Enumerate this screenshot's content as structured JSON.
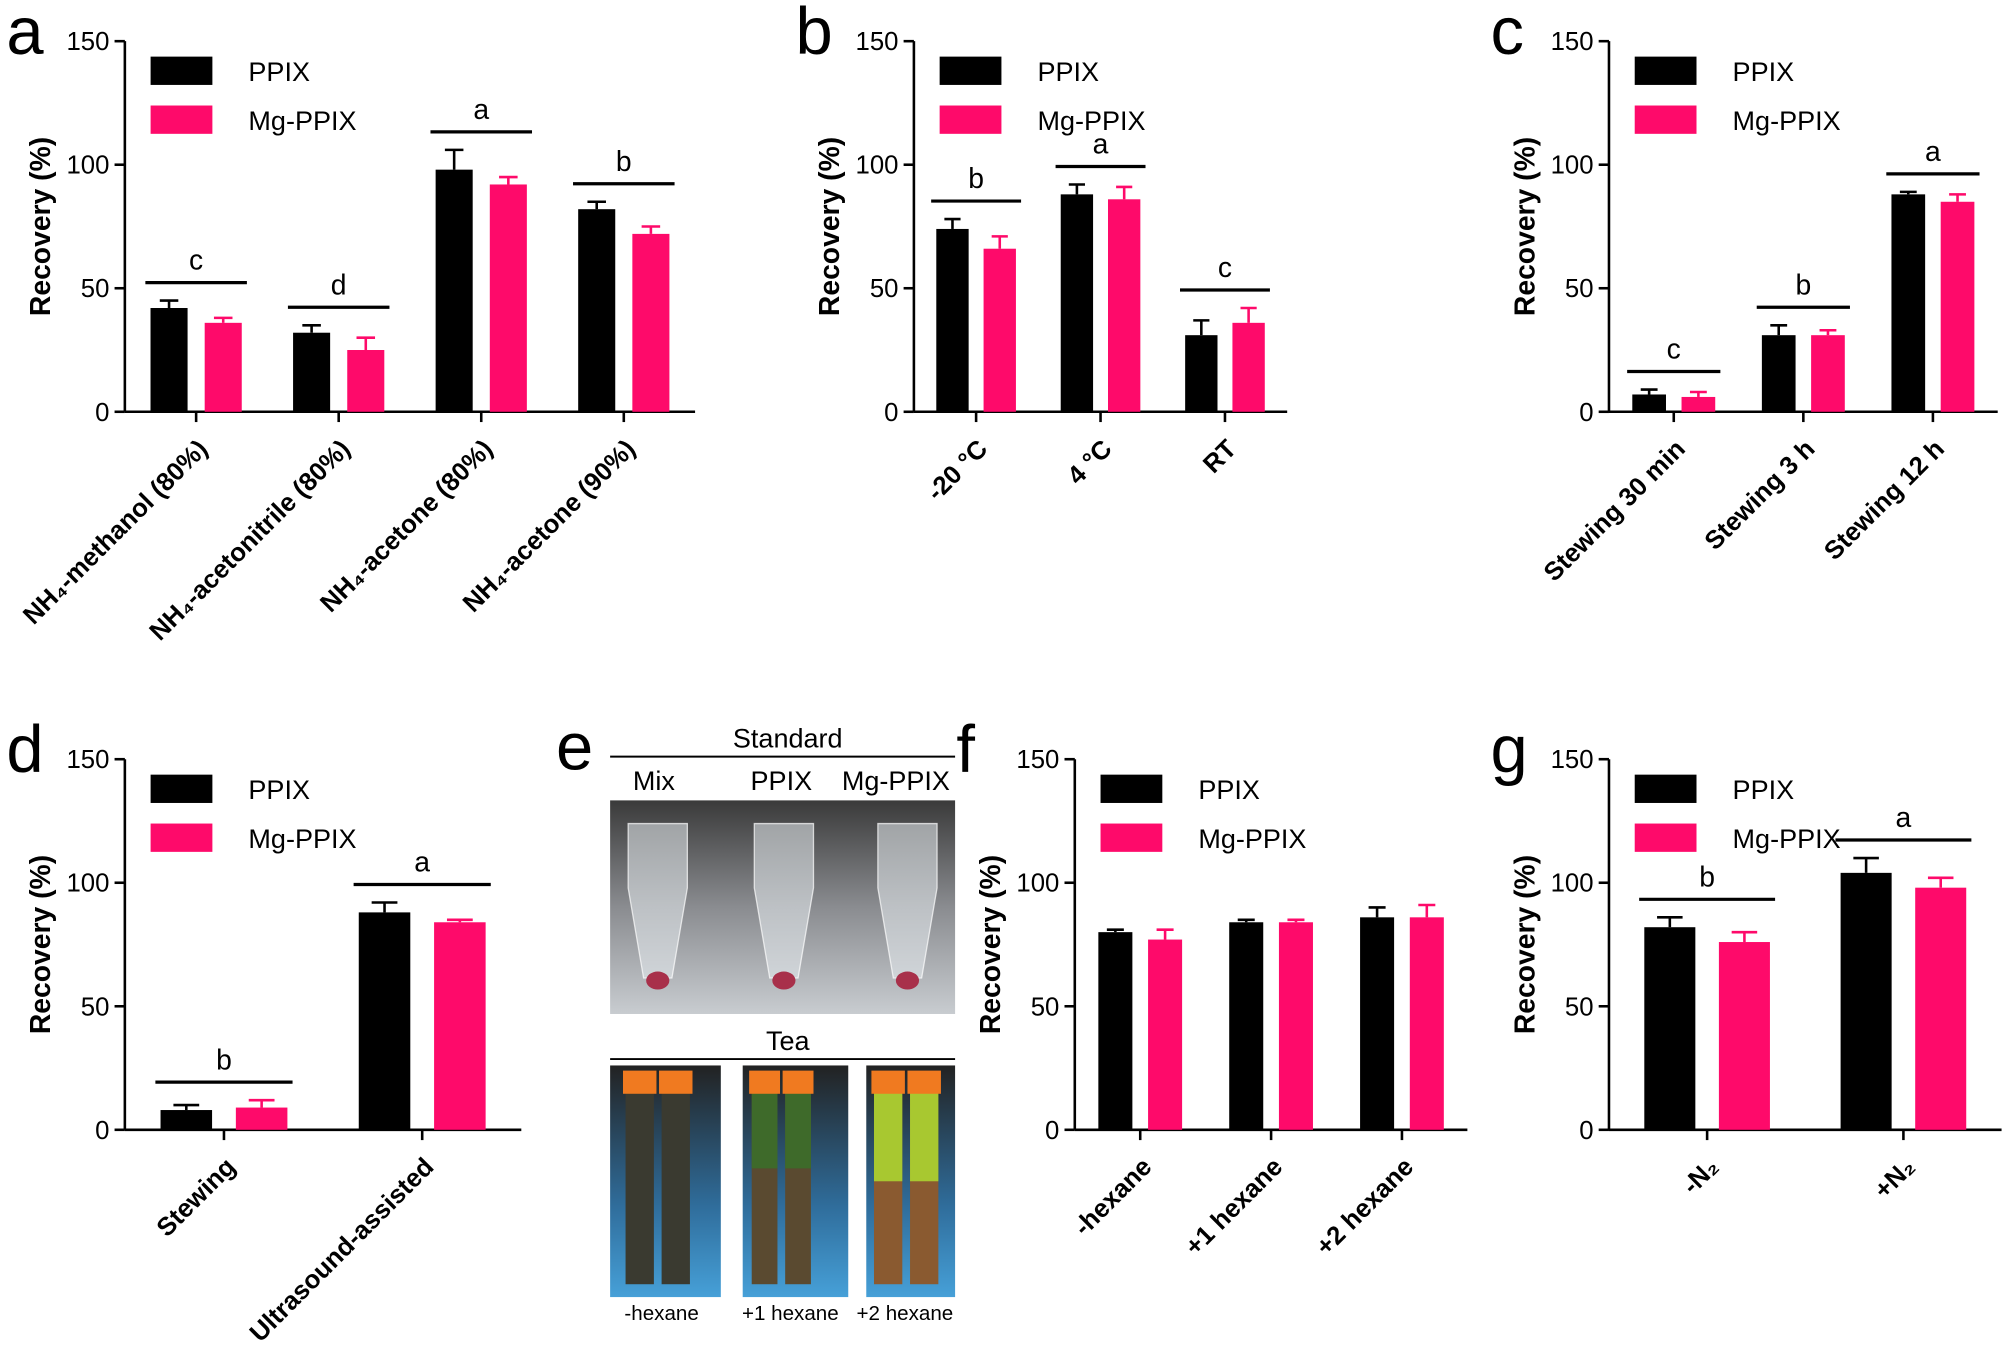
{
  "chart_data": [
    {
      "type": "bar",
      "panel": "a",
      "y_label": "Recovery (%)",
      "legend": "upper left",
      "categories": [
        "NH₄-methanol (80%)",
        "NH₄-acetonitrile (80%)",
        "NH₄-acetone (80%)",
        "NH₄-acetone (90%)"
      ],
      "series": [
        {
          "name": "PPIX",
          "color": "#000000",
          "values": [
            42,
            32,
            98,
            82
          ],
          "errors": [
            3,
            3,
            8,
            3
          ]
        },
        {
          "name": "Mg-PPIX",
          "color": "#fe0a6a",
          "values": [
            36,
            25,
            92,
            72
          ],
          "errors": [
            2,
            5,
            3,
            3
          ]
        }
      ],
      "significance": [
        "c",
        "d",
        "a",
        "b"
      ],
      "ylim": [
        0,
        150
      ],
      "yticks": [
        0,
        50,
        100,
        150
      ]
    },
    {
      "type": "bar",
      "panel": "b",
      "y_label": "Recovery (%)",
      "legend": "upper left",
      "categories": [
        "-20 °C",
        "4 °C",
        "RT"
      ],
      "series": [
        {
          "name": "PPIX",
          "color": "#000000",
          "values": [
            74,
            88,
            31
          ],
          "errors": [
            4,
            4,
            6
          ]
        },
        {
          "name": "Mg-PPIX",
          "color": "#fe0a6a",
          "values": [
            66,
            86,
            36
          ],
          "errors": [
            5,
            5,
            6
          ]
        }
      ],
      "significance": [
        "b",
        "a",
        "c"
      ],
      "ylim": [
        0,
        150
      ],
      "yticks": [
        0,
        50,
        100,
        150
      ]
    },
    {
      "type": "bar",
      "panel": "c",
      "y_label": "Recovery (%)",
      "legend": "upper left",
      "categories": [
        "Stewing 30 min",
        "Stewing 3 h",
        "Stewing 12 h"
      ],
      "series": [
        {
          "name": "PPIX",
          "color": "#000000",
          "values": [
            7,
            31,
            88
          ],
          "errors": [
            2,
            4,
            1
          ]
        },
        {
          "name": "Mg-PPIX",
          "color": "#fe0a6a",
          "values": [
            6,
            31,
            85
          ],
          "errors": [
            2,
            2,
            3
          ]
        }
      ],
      "significance": [
        "c",
        "b",
        "a"
      ],
      "ylim": [
        0,
        150
      ],
      "yticks": [
        0,
        50,
        100,
        150
      ]
    },
    {
      "type": "bar",
      "panel": "d",
      "y_label": "Recovery (%)",
      "legend": "upper left",
      "categories": [
        "Stewing",
        "Ultrasound-assisted"
      ],
      "series": [
        {
          "name": "PPIX",
          "color": "#000000",
          "values": [
            8,
            88
          ],
          "errors": [
            2,
            4
          ]
        },
        {
          "name": "Mg-PPIX",
          "color": "#fe0a6a",
          "values": [
            9,
            84
          ],
          "errors": [
            3,
            1
          ]
        }
      ],
      "significance": [
        "b",
        "a"
      ],
      "ylim": [
        0,
        150
      ],
      "yticks": [
        0,
        50,
        100,
        150
      ]
    },
    {
      "type": "bar",
      "panel": "f",
      "y_label": "Recovery (%)",
      "legend": "upper left",
      "categories": [
        "-hexane",
        "+1 hexane",
        "+2 hexane"
      ],
      "series": [
        {
          "name": "PPIX",
          "color": "#000000",
          "values": [
            80,
            84,
            86
          ],
          "errors": [
            1,
            1,
            4
          ]
        },
        {
          "name": "Mg-PPIX",
          "color": "#fe0a6a",
          "values": [
            77,
            84,
            86
          ],
          "errors": [
            4,
            1,
            5
          ]
        }
      ],
      "ylim": [
        0,
        150
      ],
      "yticks": [
        0,
        50,
        100,
        150
      ]
    },
    {
      "type": "bar",
      "panel": "g",
      "y_label": "Recovery (%)",
      "legend": "upper left",
      "categories": [
        "-N₂",
        "+N₂"
      ],
      "series": [
        {
          "name": "PPIX",
          "color": "#000000",
          "values": [
            82,
            104
          ],
          "errors": [
            4,
            6
          ]
        },
        {
          "name": "Mg-PPIX",
          "color": "#fe0a6a",
          "values": [
            76,
            98
          ],
          "errors": [
            4,
            4
          ]
        }
      ],
      "significance": [
        "b",
        "a"
      ],
      "ylim": [
        0,
        150
      ],
      "yticks": [
        0,
        50,
        100,
        150
      ]
    }
  ],
  "photo_panel": {
    "panel": "e",
    "standard": {
      "title": "Standard",
      "labels": [
        "Mix",
        "PPIX",
        "Mg-PPIX"
      ]
    },
    "tea": {
      "title": "Tea",
      "labels": [
        "-hexane",
        "+1 hexane",
        "+2 hexane"
      ]
    }
  }
}
